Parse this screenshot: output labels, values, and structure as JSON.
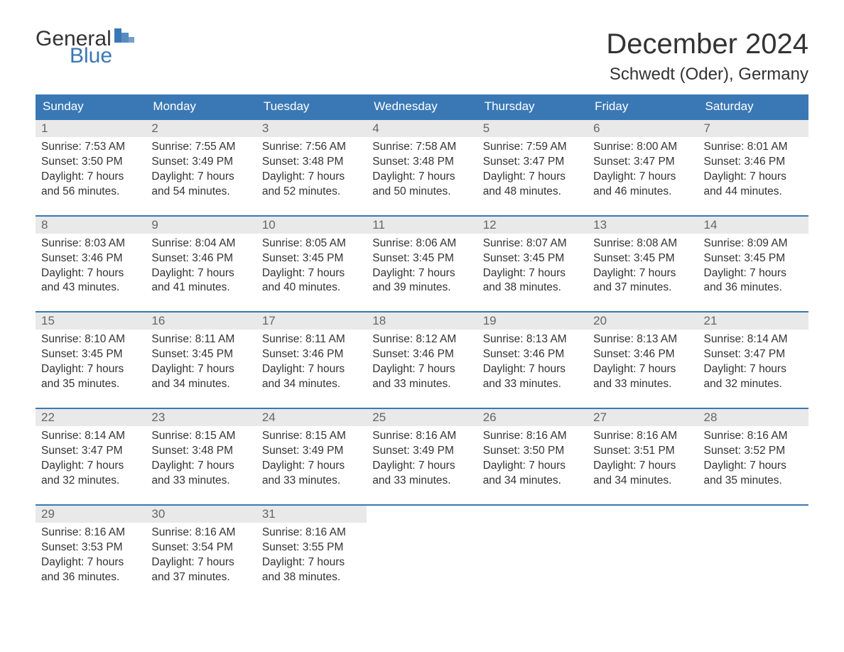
{
  "logo": {
    "text_general": "General",
    "text_blue": "Blue",
    "flag_color": "#3a78b5",
    "general_color": "#333333",
    "blue_color": "#3a78b5"
  },
  "header": {
    "month_title": "December 2024",
    "location": "Schwedt (Oder), Germany"
  },
  "styling": {
    "header_bg": "#3a78b5",
    "header_text_color": "#ffffff",
    "daynum_bg": "#e9e9e9",
    "daynum_color": "#666666",
    "row_border_color": "#3a78b5",
    "body_text_color": "#333333",
    "body_font_size_pt": 12,
    "title_font_size_pt": 30,
    "location_font_size_pt": 18,
    "background_color": "#ffffff"
  },
  "days_of_week": [
    "Sunday",
    "Monday",
    "Tuesday",
    "Wednesday",
    "Thursday",
    "Friday",
    "Saturday"
  ],
  "weeks": [
    [
      {
        "num": "1",
        "sunrise": "Sunrise: 7:53 AM",
        "sunset": "Sunset: 3:50 PM",
        "daylight": "Daylight: 7 hours and 56 minutes."
      },
      {
        "num": "2",
        "sunrise": "Sunrise: 7:55 AM",
        "sunset": "Sunset: 3:49 PM",
        "daylight": "Daylight: 7 hours and 54 minutes."
      },
      {
        "num": "3",
        "sunrise": "Sunrise: 7:56 AM",
        "sunset": "Sunset: 3:48 PM",
        "daylight": "Daylight: 7 hours and 52 minutes."
      },
      {
        "num": "4",
        "sunrise": "Sunrise: 7:58 AM",
        "sunset": "Sunset: 3:48 PM",
        "daylight": "Daylight: 7 hours and 50 minutes."
      },
      {
        "num": "5",
        "sunrise": "Sunrise: 7:59 AM",
        "sunset": "Sunset: 3:47 PM",
        "daylight": "Daylight: 7 hours and 48 minutes."
      },
      {
        "num": "6",
        "sunrise": "Sunrise: 8:00 AM",
        "sunset": "Sunset: 3:47 PM",
        "daylight": "Daylight: 7 hours and 46 minutes."
      },
      {
        "num": "7",
        "sunrise": "Sunrise: 8:01 AM",
        "sunset": "Sunset: 3:46 PM",
        "daylight": "Daylight: 7 hours and 44 minutes."
      }
    ],
    [
      {
        "num": "8",
        "sunrise": "Sunrise: 8:03 AM",
        "sunset": "Sunset: 3:46 PM",
        "daylight": "Daylight: 7 hours and 43 minutes."
      },
      {
        "num": "9",
        "sunrise": "Sunrise: 8:04 AM",
        "sunset": "Sunset: 3:46 PM",
        "daylight": "Daylight: 7 hours and 41 minutes."
      },
      {
        "num": "10",
        "sunrise": "Sunrise: 8:05 AM",
        "sunset": "Sunset: 3:45 PM",
        "daylight": "Daylight: 7 hours and 40 minutes."
      },
      {
        "num": "11",
        "sunrise": "Sunrise: 8:06 AM",
        "sunset": "Sunset: 3:45 PM",
        "daylight": "Daylight: 7 hours and 39 minutes."
      },
      {
        "num": "12",
        "sunrise": "Sunrise: 8:07 AM",
        "sunset": "Sunset: 3:45 PM",
        "daylight": "Daylight: 7 hours and 38 minutes."
      },
      {
        "num": "13",
        "sunrise": "Sunrise: 8:08 AM",
        "sunset": "Sunset: 3:45 PM",
        "daylight": "Daylight: 7 hours and 37 minutes."
      },
      {
        "num": "14",
        "sunrise": "Sunrise: 8:09 AM",
        "sunset": "Sunset: 3:45 PM",
        "daylight": "Daylight: 7 hours and 36 minutes."
      }
    ],
    [
      {
        "num": "15",
        "sunrise": "Sunrise: 8:10 AM",
        "sunset": "Sunset: 3:45 PM",
        "daylight": "Daylight: 7 hours and 35 minutes."
      },
      {
        "num": "16",
        "sunrise": "Sunrise: 8:11 AM",
        "sunset": "Sunset: 3:45 PM",
        "daylight": "Daylight: 7 hours and 34 minutes."
      },
      {
        "num": "17",
        "sunrise": "Sunrise: 8:11 AM",
        "sunset": "Sunset: 3:46 PM",
        "daylight": "Daylight: 7 hours and 34 minutes."
      },
      {
        "num": "18",
        "sunrise": "Sunrise: 8:12 AM",
        "sunset": "Sunset: 3:46 PM",
        "daylight": "Daylight: 7 hours and 33 minutes."
      },
      {
        "num": "19",
        "sunrise": "Sunrise: 8:13 AM",
        "sunset": "Sunset: 3:46 PM",
        "daylight": "Daylight: 7 hours and 33 minutes."
      },
      {
        "num": "20",
        "sunrise": "Sunrise: 8:13 AM",
        "sunset": "Sunset: 3:46 PM",
        "daylight": "Daylight: 7 hours and 33 minutes."
      },
      {
        "num": "21",
        "sunrise": "Sunrise: 8:14 AM",
        "sunset": "Sunset: 3:47 PM",
        "daylight": "Daylight: 7 hours and 32 minutes."
      }
    ],
    [
      {
        "num": "22",
        "sunrise": "Sunrise: 8:14 AM",
        "sunset": "Sunset: 3:47 PM",
        "daylight": "Daylight: 7 hours and 32 minutes."
      },
      {
        "num": "23",
        "sunrise": "Sunrise: 8:15 AM",
        "sunset": "Sunset: 3:48 PM",
        "daylight": "Daylight: 7 hours and 33 minutes."
      },
      {
        "num": "24",
        "sunrise": "Sunrise: 8:15 AM",
        "sunset": "Sunset: 3:49 PM",
        "daylight": "Daylight: 7 hours and 33 minutes."
      },
      {
        "num": "25",
        "sunrise": "Sunrise: 8:16 AM",
        "sunset": "Sunset: 3:49 PM",
        "daylight": "Daylight: 7 hours and 33 minutes."
      },
      {
        "num": "26",
        "sunrise": "Sunrise: 8:16 AM",
        "sunset": "Sunset: 3:50 PM",
        "daylight": "Daylight: 7 hours and 34 minutes."
      },
      {
        "num": "27",
        "sunrise": "Sunrise: 8:16 AM",
        "sunset": "Sunset: 3:51 PM",
        "daylight": "Daylight: 7 hours and 34 minutes."
      },
      {
        "num": "28",
        "sunrise": "Sunrise: 8:16 AM",
        "sunset": "Sunset: 3:52 PM",
        "daylight": "Daylight: 7 hours and 35 minutes."
      }
    ],
    [
      {
        "num": "29",
        "sunrise": "Sunrise: 8:16 AM",
        "sunset": "Sunset: 3:53 PM",
        "daylight": "Daylight: 7 hours and 36 minutes."
      },
      {
        "num": "30",
        "sunrise": "Sunrise: 8:16 AM",
        "sunset": "Sunset: 3:54 PM",
        "daylight": "Daylight: 7 hours and 37 minutes."
      },
      {
        "num": "31",
        "sunrise": "Sunrise: 8:16 AM",
        "sunset": "Sunset: 3:55 PM",
        "daylight": "Daylight: 7 hours and 38 minutes."
      },
      {
        "empty": true
      },
      {
        "empty": true
      },
      {
        "empty": true
      },
      {
        "empty": true
      }
    ]
  ]
}
